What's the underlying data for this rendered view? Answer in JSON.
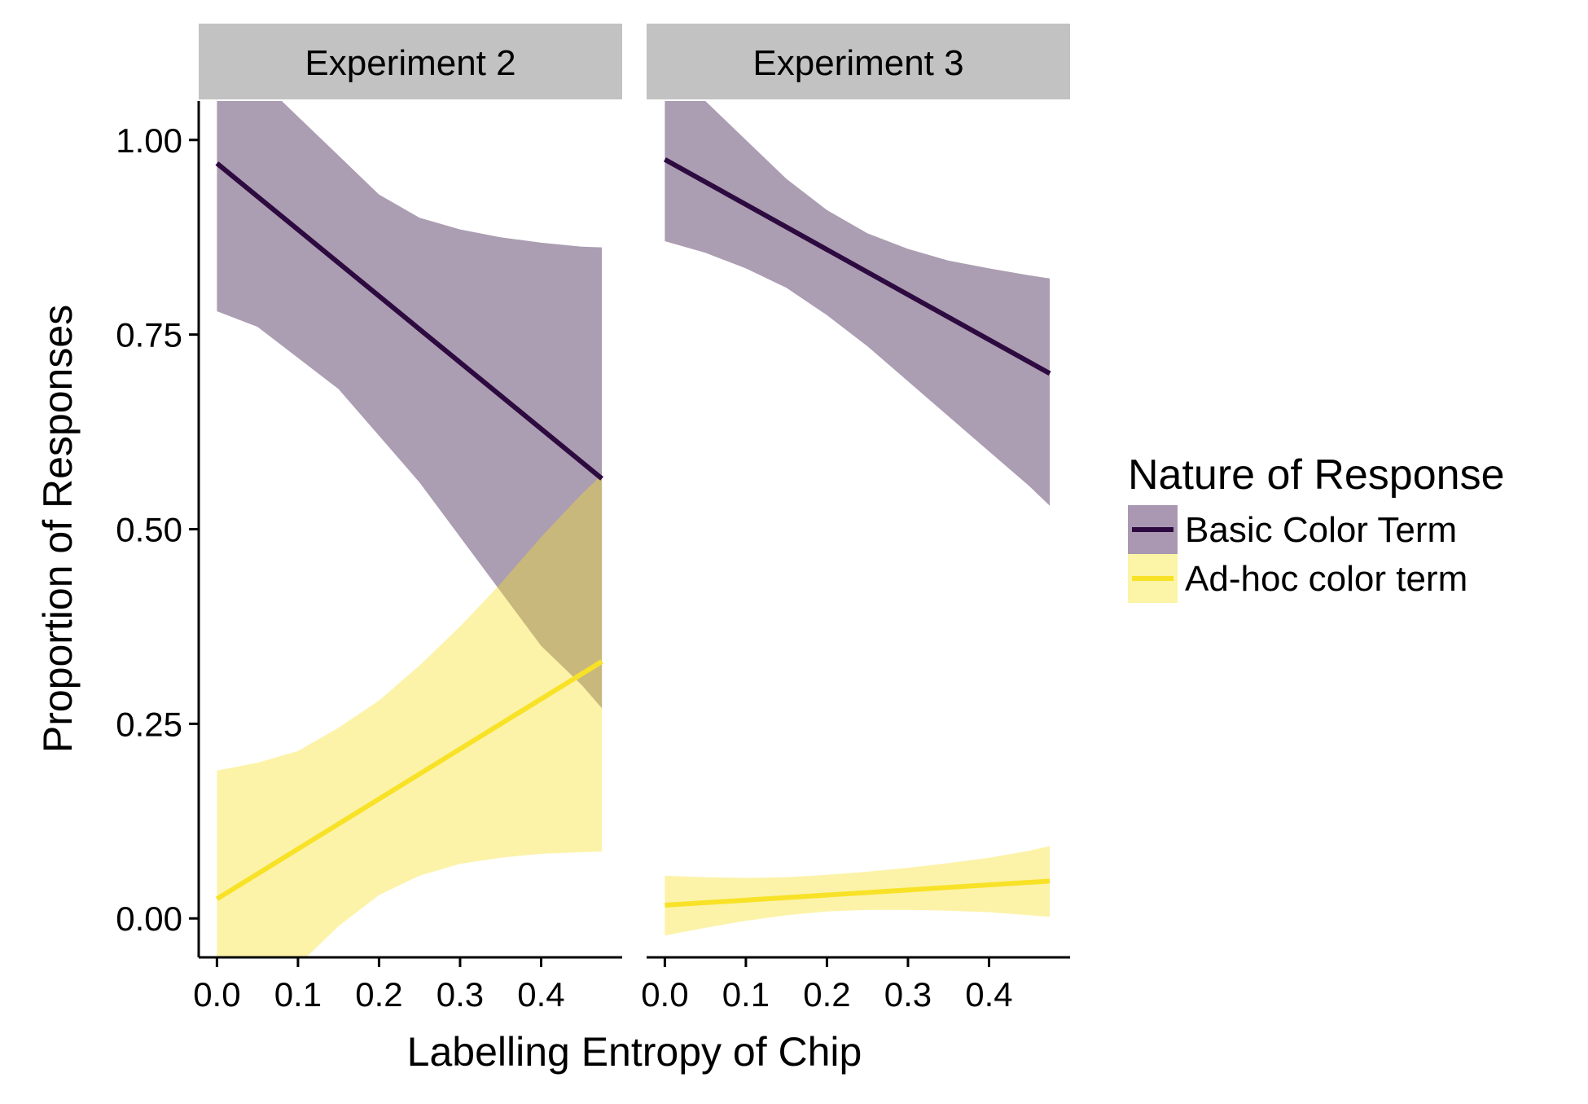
{
  "chart_data": {
    "type": "line",
    "xlabel": "Labelling Entropy of Chip",
    "ylabel": "Proportion of Responses",
    "xlim": [
      -0.0225,
      0.5
    ],
    "ylim": [
      -0.05,
      1.05
    ],
    "x_ticks": [
      "0.0",
      "0.1",
      "0.2",
      "0.3",
      "0.4"
    ],
    "y_ticks": [
      "0.00",
      "0.25",
      "0.50",
      "0.75",
      "1.00"
    ],
    "grid": false,
    "legend": {
      "title": "Nature of Response",
      "placement": "right",
      "items": [
        {
          "label": "Basic Color Term",
          "color": "#2D0A3F",
          "fill": "#AA98B3"
        },
        {
          "label": "Ad-hoc color term",
          "color": "#F8E227",
          "fill": "#FCF4A6"
        }
      ]
    },
    "panels": [
      {
        "title": "Experiment 2",
        "series": [
          {
            "name": "Basic Color Term",
            "x": [
              0.0,
              0.475
            ],
            "y": [
              0.97,
              0.565
            ],
            "band_x": [
              0.0,
              0.05,
              0.1,
              0.15,
              0.2,
              0.25,
              0.3,
              0.35,
              0.4,
              0.45,
              0.475
            ],
            "band_lower": [
              0.78,
              0.76,
              0.72,
              0.68,
              0.62,
              0.56,
              0.49,
              0.42,
              0.35,
              0.3,
              0.27
            ],
            "band_upper": [
              1.08,
              1.08,
              1.03,
              0.98,
              0.93,
              0.9,
              0.885,
              0.875,
              0.868,
              0.863,
              0.862
            ]
          },
          {
            "name": "Ad-hoc color term",
            "x": [
              0.0,
              0.475
            ],
            "y": [
              0.025,
              0.33
            ],
            "band_x": [
              0.0,
              0.05,
              0.1,
              0.15,
              0.2,
              0.25,
              0.3,
              0.35,
              0.4,
              0.45,
              0.475
            ],
            "band_lower": [
              -0.13,
              -0.1,
              -0.06,
              -0.01,
              0.03,
              0.055,
              0.07,
              0.078,
              0.083,
              0.085,
              0.086
            ],
            "band_upper": [
              0.19,
              0.2,
              0.215,
              0.245,
              0.28,
              0.325,
              0.375,
              0.43,
              0.49,
              0.545,
              0.57
            ]
          }
        ]
      },
      {
        "title": "Experiment 3",
        "series": [
          {
            "name": "Basic Color Term",
            "x": [
              0.0,
              0.475
            ],
            "y": [
              0.975,
              0.7
            ],
            "band_x": [
              0.0,
              0.05,
              0.1,
              0.15,
              0.2,
              0.25,
              0.3,
              0.35,
              0.4,
              0.45,
              0.475
            ],
            "band_lower": [
              0.87,
              0.855,
              0.835,
              0.81,
              0.775,
              0.735,
              0.69,
              0.645,
              0.6,
              0.555,
              0.53
            ],
            "band_upper": [
              1.08,
              1.05,
              1.0,
              0.95,
              0.91,
              0.88,
              0.86,
              0.845,
              0.835,
              0.826,
              0.822
            ]
          },
          {
            "name": "Ad-hoc color term",
            "x": [
              0.0,
              0.475
            ],
            "y": [
              0.017,
              0.048
            ],
            "band_x": [
              0.0,
              0.05,
              0.1,
              0.15,
              0.2,
              0.25,
              0.3,
              0.35,
              0.4,
              0.45,
              0.475
            ],
            "band_lower": [
              -0.022,
              -0.012,
              -0.003,
              0.004,
              0.009,
              0.011,
              0.011,
              0.01,
              0.008,
              0.004,
              0.002
            ],
            "band_upper": [
              0.055,
              0.053,
              0.052,
              0.053,
              0.056,
              0.06,
              0.065,
              0.071,
              0.078,
              0.087,
              0.093
            ]
          }
        ]
      }
    ]
  }
}
